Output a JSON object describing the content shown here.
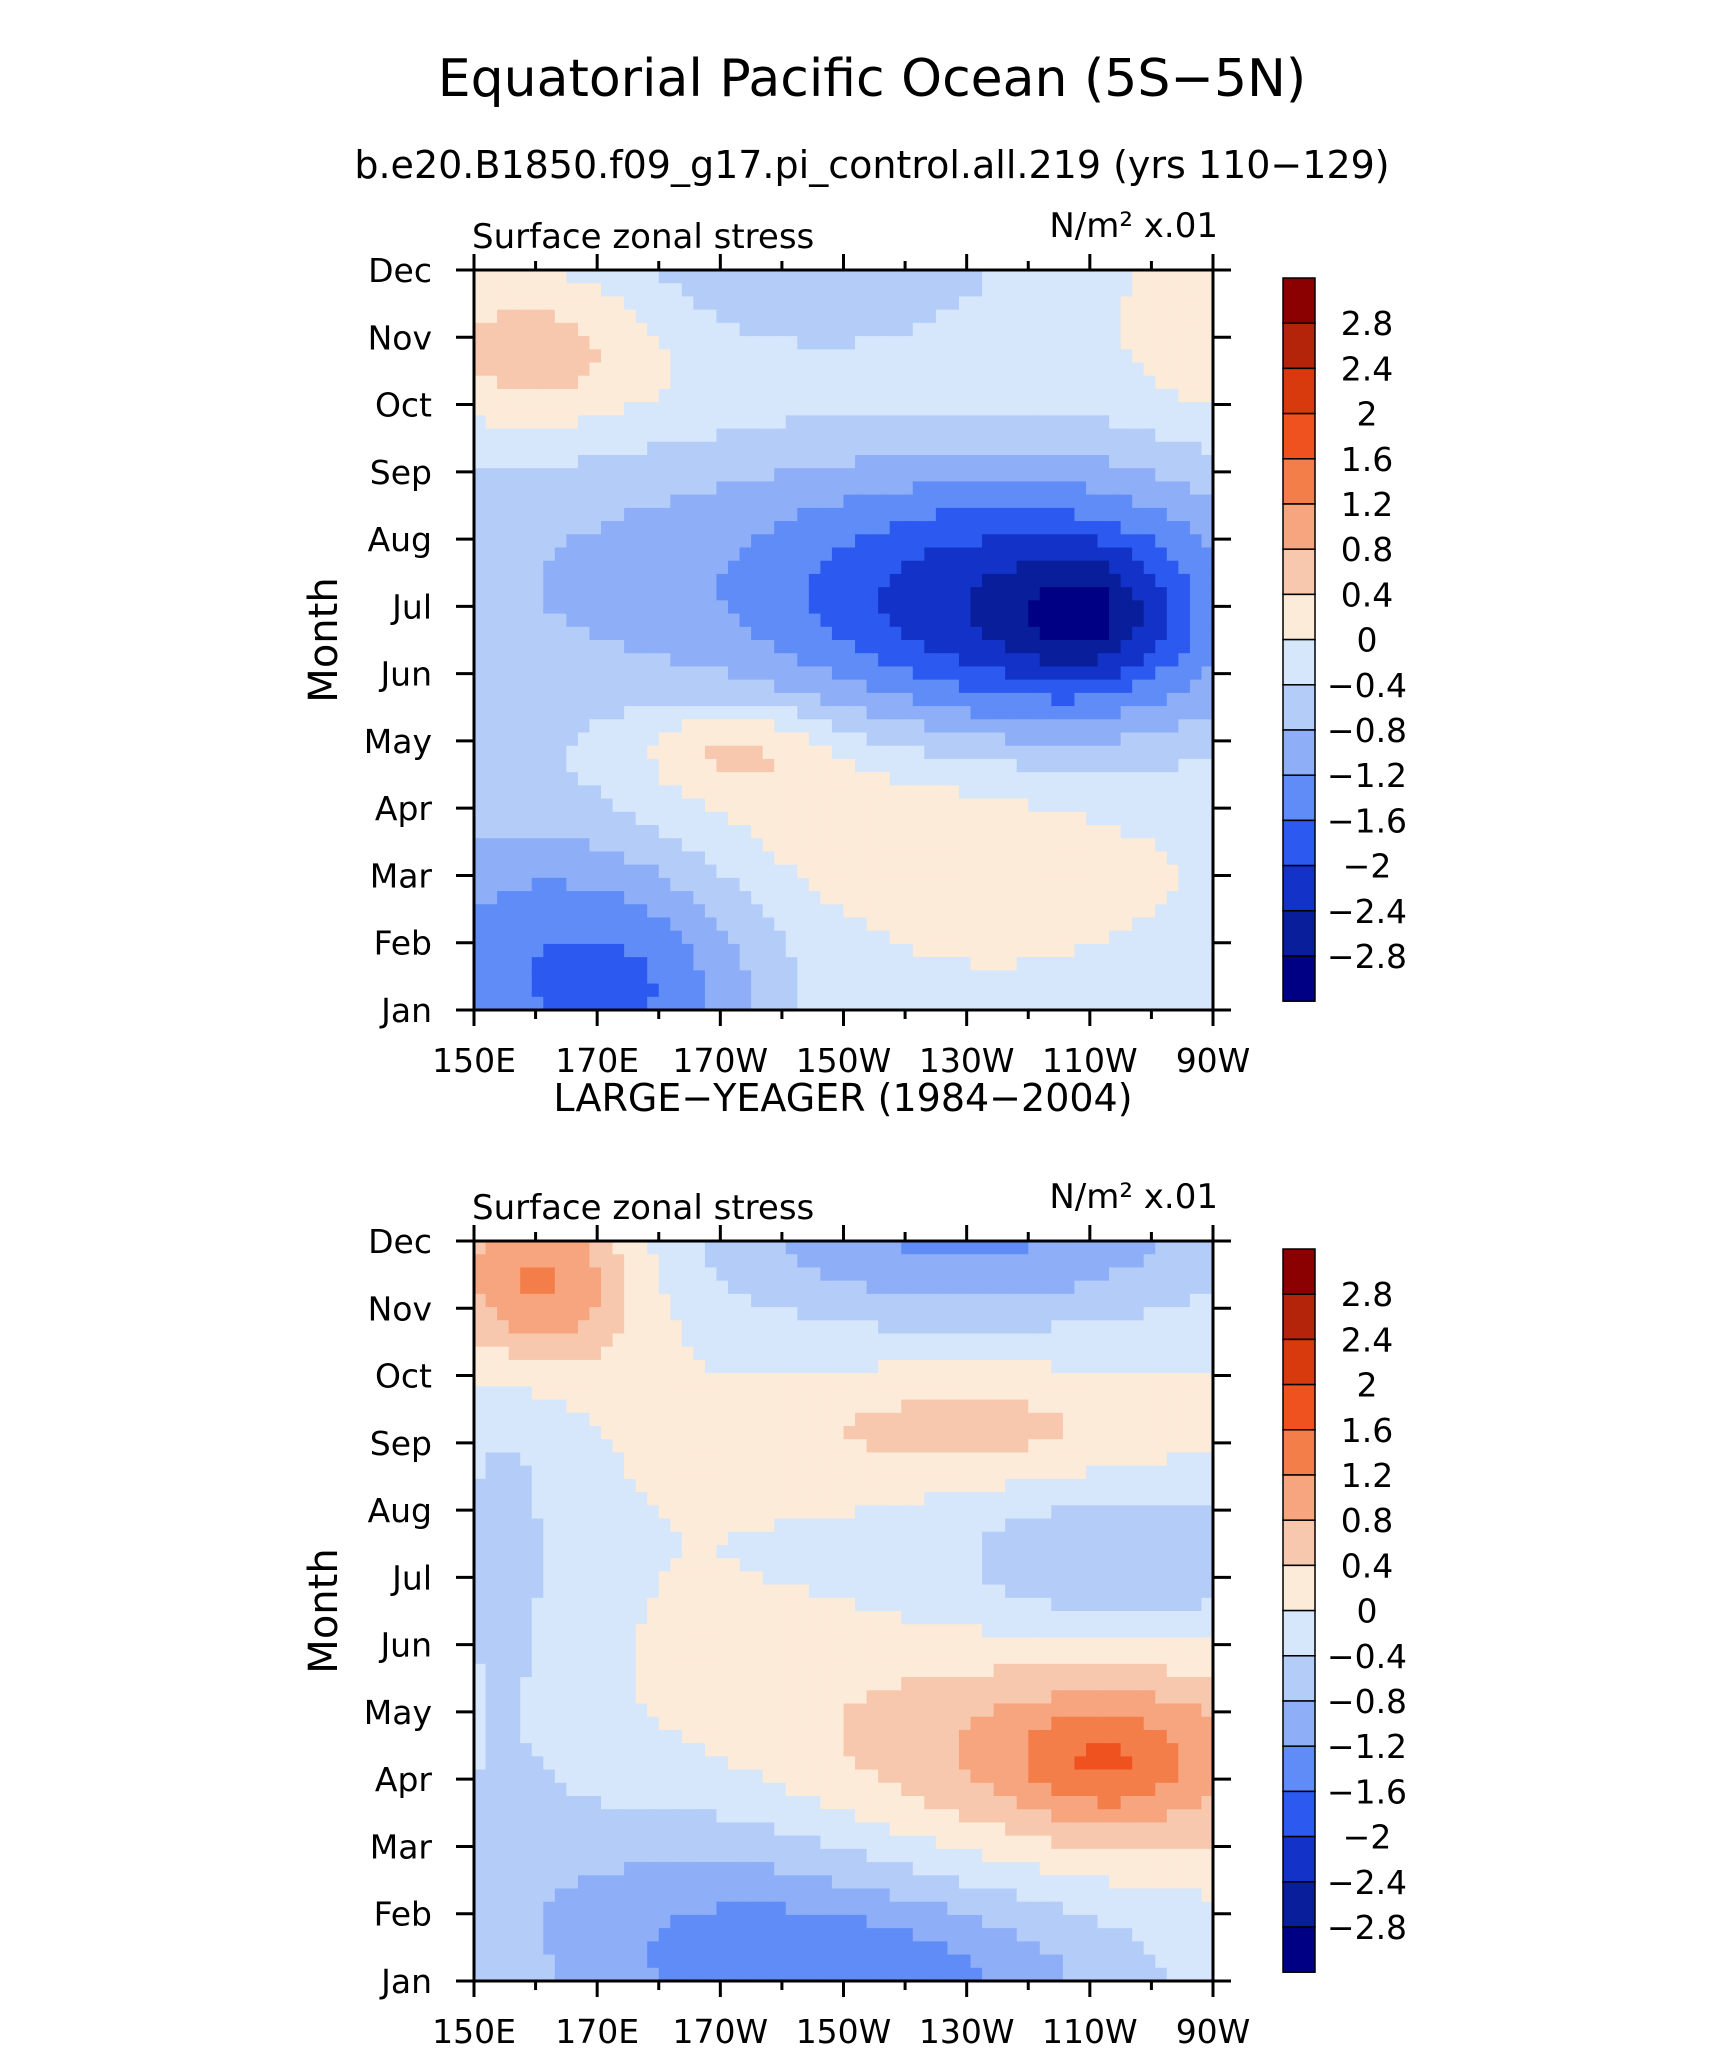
{
  "title": "Equatorial Pacific Ocean (5S−5N)",
  "subtitle": "b.e20.B1850.f09_g17.pi_control.all.219 (yrs 110−129)",
  "chart_data": [
    {
      "type": "heatmap",
      "panel_title": "",
      "left_label": "Surface zonal stress",
      "right_label": "N/m² x.01",
      "ylabel": "Month",
      "x_ticks": [
        "150E",
        "170E",
        "170W",
        "150W",
        "130W",
        "110W",
        "90W"
      ],
      "y_ticks": [
        "Jan",
        "Feb",
        "Mar",
        "Apr",
        "May",
        "Jun",
        "Jul",
        "Aug",
        "Sep",
        "Oct",
        "Nov",
        "Dec"
      ],
      "blobs": [
        {
          "lon": 190,
          "mon": 7.3,
          "rx": 80,
          "ry": 5.0,
          "v": -0.9
        },
        {
          "lon": 240,
          "mon": 7.0,
          "rx": 40,
          "ry": 2.2,
          "v": -1.9
        },
        {
          "lon": 250,
          "mon": 7.0,
          "rx": 12,
          "ry": 1.0,
          "v": -0.8
        },
        {
          "lon": 160,
          "mon": 1.6,
          "rx": 30,
          "ry": 3.2,
          "v": -1.3
        },
        {
          "lon": 180,
          "mon": 1.0,
          "rx": 18,
          "ry": 2.0,
          "v": -0.6
        },
        {
          "lon": 200,
          "mon": 4.5,
          "rx": 62,
          "ry": 1.9,
          "v": 1.0
        },
        {
          "lon": 230,
          "mon": 3.0,
          "rx": 26,
          "ry": 1.5,
          "v": 0.25
        },
        {
          "lon": 192,
          "mon": 5.0,
          "rx": 14,
          "ry": 0.6,
          "v": 0.6
        },
        {
          "lon": 200,
          "mon": 11.0,
          "rx": 60,
          "ry": 1.8,
          "v": 0.7
        },
        {
          "lon": 160,
          "mon": 11.0,
          "rx": 20,
          "ry": 1.2,
          "v": 0.7
        },
        {
          "lon": 205,
          "mon": 12.2,
          "rx": 35,
          "ry": 1.6,
          "v": -0.9
        },
        {
          "lon": 268,
          "mon": 11.6,
          "rx": 10,
          "ry": 1.6,
          "v": 0.4
        }
      ],
      "colorbar": {
        "labels": [
          "2.8",
          "2.4",
          "2",
          "1.6",
          "1.2",
          "0.8",
          "0.4",
          "0",
          "−0.4",
          "−0.8",
          "−1.2",
          "−1.6",
          "−2",
          "−2.4",
          "−2.8"
        ],
        "colors": [
          "#8b0000",
          "#b3240b",
          "#d93a0d",
          "#f0521f",
          "#f47e4a",
          "#f6a57f",
          "#f7c8ad",
          "#fdebd9",
          "#d6e6fb",
          "#b4ccf8",
          "#8eaef7",
          "#5f8cf6",
          "#2c5af0",
          "#1232c8",
          "#081e9a",
          "#000085"
        ]
      }
    },
    {
      "type": "heatmap",
      "panel_title": "LARGE−YEAGER (1984−2004)",
      "left_label": "Surface zonal stress",
      "right_label": "N/m² x.01",
      "ylabel": "Month",
      "x_ticks": [
        "150E",
        "170E",
        "170W",
        "150W",
        "130W",
        "110W",
        "90W"
      ],
      "y_ticks": [
        "Jan",
        "Feb",
        "Mar",
        "Apr",
        "May",
        "Jun",
        "Jul",
        "Aug",
        "Sep",
        "Oct",
        "Nov",
        "Dec"
      ],
      "blobs": [
        {
          "lon": 160,
          "mon": 11.7,
          "rx": 16,
          "ry": 1.4,
          "v": 1.5
        },
        {
          "lon": 230,
          "mon": 12.4,
          "rx": 44,
          "ry": 1.4,
          "v": -1.3
        },
        {
          "lon": 250,
          "mon": 4.5,
          "rx": 52,
          "ry": 1.6,
          "v": 1.0
        },
        {
          "lon": 252,
          "mon": 4.3,
          "rx": 14,
          "ry": 0.9,
          "v": 0.7
        },
        {
          "lon": 230,
          "mon": 9.4,
          "rx": 32,
          "ry": 0.9,
          "v": 0.6
        },
        {
          "lon": 255,
          "mon": 7.4,
          "rx": 30,
          "ry": 1.3,
          "v": -0.8
        },
        {
          "lon": 185,
          "mon": 2.0,
          "rx": 40,
          "ry": 2.2,
          "v": -0.9
        },
        {
          "lon": 220,
          "mon": 1.0,
          "rx": 42,
          "ry": 1.4,
          "v": -1.1
        },
        {
          "lon": 155,
          "mon": 7.5,
          "rx": 12,
          "ry": 4.5,
          "v": -0.5
        }
      ],
      "colorbar": {
        "labels": [
          "2.8",
          "2.4",
          "2",
          "1.6",
          "1.2",
          "0.8",
          "0.4",
          "0",
          "−0.4",
          "−0.8",
          "−1.2",
          "−1.6",
          "−2",
          "−2.4",
          "−2.8"
        ],
        "colors": [
          "#8b0000",
          "#b3240b",
          "#d93a0d",
          "#f0521f",
          "#f47e4a",
          "#f6a57f",
          "#f7c8ad",
          "#fdebd9",
          "#d6e6fb",
          "#b4ccf8",
          "#8eaef7",
          "#5f8cf6",
          "#2c5af0",
          "#1232c8",
          "#081e9a",
          "#000085"
        ]
      }
    }
  ]
}
